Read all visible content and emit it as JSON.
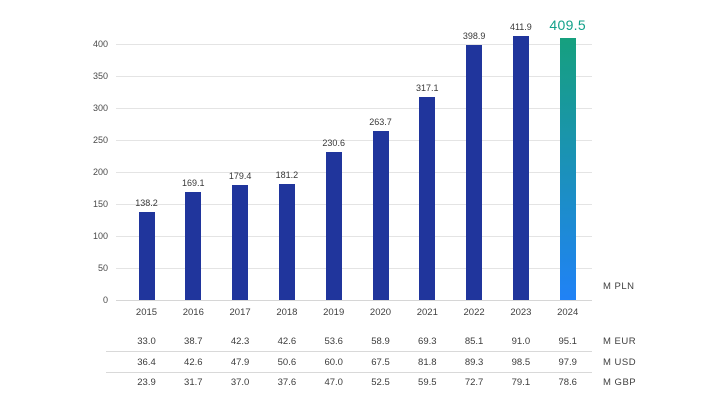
{
  "chart_data": {
    "type": "bar",
    "title": "",
    "xlabel": "",
    "ylabel": "",
    "categories": [
      "2015",
      "2016",
      "2017",
      "2018",
      "2019",
      "2020",
      "2021",
      "2022",
      "2023",
      "2024"
    ],
    "series": [
      {
        "name": "M PLN",
        "values": [
          138.2,
          169.1,
          179.4,
          181.2,
          230.6,
          263.7,
          317.1,
          398.9,
          411.9,
          409.5
        ]
      }
    ],
    "value_labels": [
      "138.2",
      "169.1",
      "179.4",
      "181.2",
      "230.6",
      "263.7",
      "317.1",
      "398.9",
      "411.9",
      "409.5"
    ],
    "unit_label": "M PLN",
    "highlight_index": 9,
    "highlight_value_label": "409.5",
    "ylim": [
      0,
      400
    ],
    "ytick_step": 50,
    "ytick_labels": [
      "0",
      "50",
      "100",
      "150",
      "200",
      "250",
      "300",
      "350",
      "400"
    ],
    "grid": true,
    "legend_position": "none",
    "currency_table": {
      "rows": [
        {
          "label": "M EUR",
          "values": [
            "33.0",
            "38.7",
            "42.3",
            "42.6",
            "53.6",
            "58.9",
            "69.3",
            "85.1",
            "91.0",
            "95.1"
          ]
        },
        {
          "label": "M USD",
          "values": [
            "36.4",
            "42.6",
            "47.9",
            "50.6",
            "60.0",
            "67.5",
            "81.8",
            "89.3",
            "98.5",
            "97.9"
          ]
        },
        {
          "label": "M GBP",
          "values": [
            "23.9",
            "31.7",
            "37.0",
            "37.6",
            "47.0",
            "52.5",
            "59.5",
            "72.7",
            "79.1",
            "78.6"
          ]
        }
      ]
    },
    "colors": {
      "bar": "#20359c",
      "highlight_gradient_top": "#16a07e",
      "highlight_gradient_bottom": "#2082f6",
      "highlight_label": "#12a18a",
      "gridline": "#e4e4e4",
      "axis_text": "#4a4a4a",
      "value_text": "#383838"
    }
  }
}
